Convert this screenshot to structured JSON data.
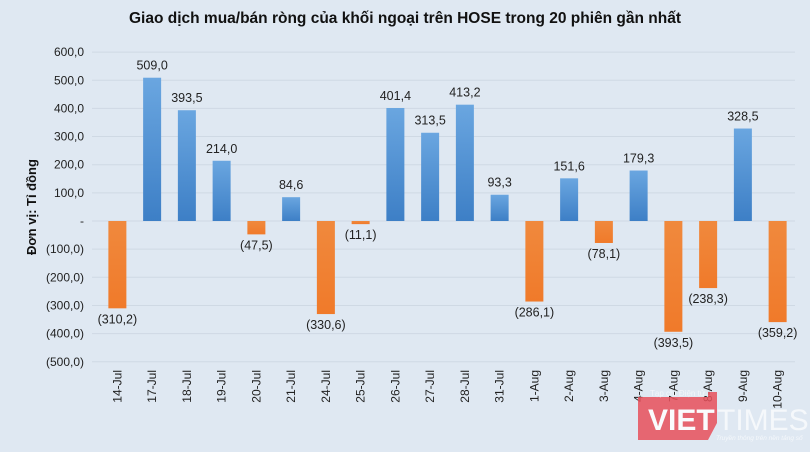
{
  "chart_data": {
    "type": "bar",
    "title": "Giao dịch mua/bán ròng của khối ngoại trên HOSE trong 20 phiên gần nhất",
    "ylabel": "Đơn vị: Tỉ đồng",
    "xlabel": "",
    "ylim": [
      -500,
      600
    ],
    "yticks": [
      600,
      500,
      400,
      300,
      200,
      100,
      0,
      -100,
      -200,
      -300,
      -400,
      -500
    ],
    "ytick_labels": [
      "600,0",
      "500,0",
      "400,0",
      "300,0",
      "200,0",
      "100,0",
      "-",
      "(100,0)",
      "(200,0)",
      "(300,0)",
      "(400,0)",
      "(500,0)"
    ],
    "grid": true,
    "categories": [
      "14-Jul",
      "17-Jul",
      "18-Jul",
      "19-Jul",
      "20-Jul",
      "21-Jul",
      "24-Jul",
      "25-Jul",
      "26-Jul",
      "27-Jul",
      "28-Jul",
      "31-Jul",
      "1-Aug",
      "2-Aug",
      "3-Aug",
      "4-Aug",
      "7-Aug",
      "8-Aug",
      "9-Aug",
      "10-Aug"
    ],
    "values": [
      -310.2,
      509.0,
      393.5,
      214.0,
      -47.5,
      84.6,
      -330.6,
      -11.1,
      401.4,
      313.5,
      413.2,
      93.3,
      -286.1,
      151.6,
      -78.1,
      179.3,
      -393.5,
      -238.3,
      328.5,
      -359.2
    ],
    "data_labels": [
      "(310,2)",
      "509,0",
      "393,5",
      "214,0",
      "(47,5)",
      "84,6",
      "(330,6)",
      "(11,1)",
      "401,4",
      "313,5",
      "413,2",
      "93,3",
      "(286,1)",
      "151,6",
      "(78,1)",
      "179,3",
      "(393,5)",
      "(238,3)",
      "328,5",
      "(359,2)"
    ],
    "colors": {
      "positive": "#4a8fd4",
      "negative": "#ef7d31"
    }
  },
  "watermark": {
    "top": "Tạp chí Điện tử",
    "brand_left": "VIET",
    "brand_right": "TIMES",
    "tagline": "Truyền thông trên nền tảng số",
    "color": "#e8505b"
  }
}
